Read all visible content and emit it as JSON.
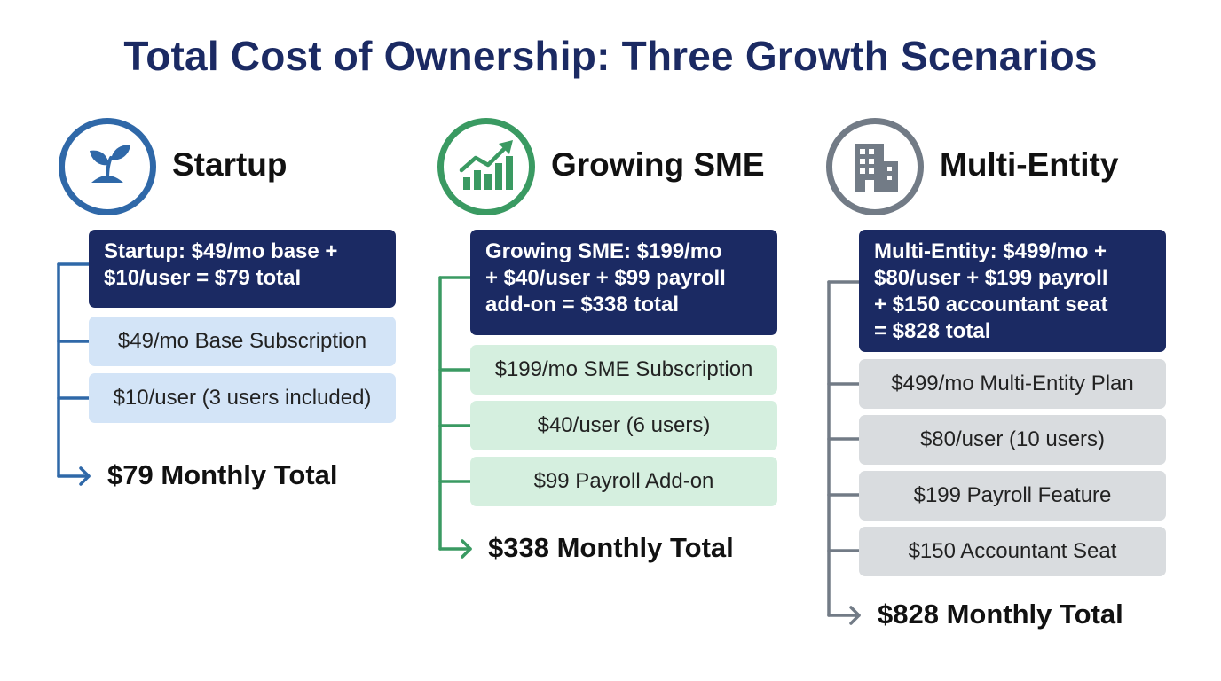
{
  "title": "Total Cost of Ownership: Three Growth Scenarios",
  "colors": {
    "navy": "#1b2a63",
    "startup_accent": "#2f68a8",
    "sme_accent": "#3a9a62",
    "multi_accent": "#727b86",
    "startup_item_bg": "#d3e4f7",
    "sme_item_bg": "#d5efdf",
    "multi_item_bg": "#d9dcdf"
  },
  "scenarios": [
    {
      "name": "Startup",
      "icon": "sprout-icon",
      "summary_lines": [
        "Startup: $49/mo base +",
        "$10/user = $79 total"
      ],
      "items": [
        "$49/mo Base Subscription",
        "$10/user (3 users included)"
      ],
      "total": "$79 Monthly Total"
    },
    {
      "name": "Growing SME",
      "icon": "growth-bar-chart-icon",
      "summary_lines": [
        "Growing SME: $199/mo",
        "+ $40/user + $99 payroll",
        "add-on = $338 total"
      ],
      "items": [
        "$199/mo SME Subscription",
        "$40/user (6 users)",
        "$99 Payroll Add-on"
      ],
      "total": "$338 Monthly Total"
    },
    {
      "name": "Multi-Entity",
      "icon": "office-building-icon",
      "summary_lines": [
        "Multi-Entity: $499/mo +",
        "$80/user + $199 payroll",
        "+ $150 accountant seat",
        "= $828 total"
      ],
      "items": [
        "$499/mo Multi-Entity Plan",
        "$80/user (10 users)",
        "$199 Payroll Feature",
        "$150 Accountant Seat"
      ],
      "total": "$828 Monthly Total"
    }
  ]
}
